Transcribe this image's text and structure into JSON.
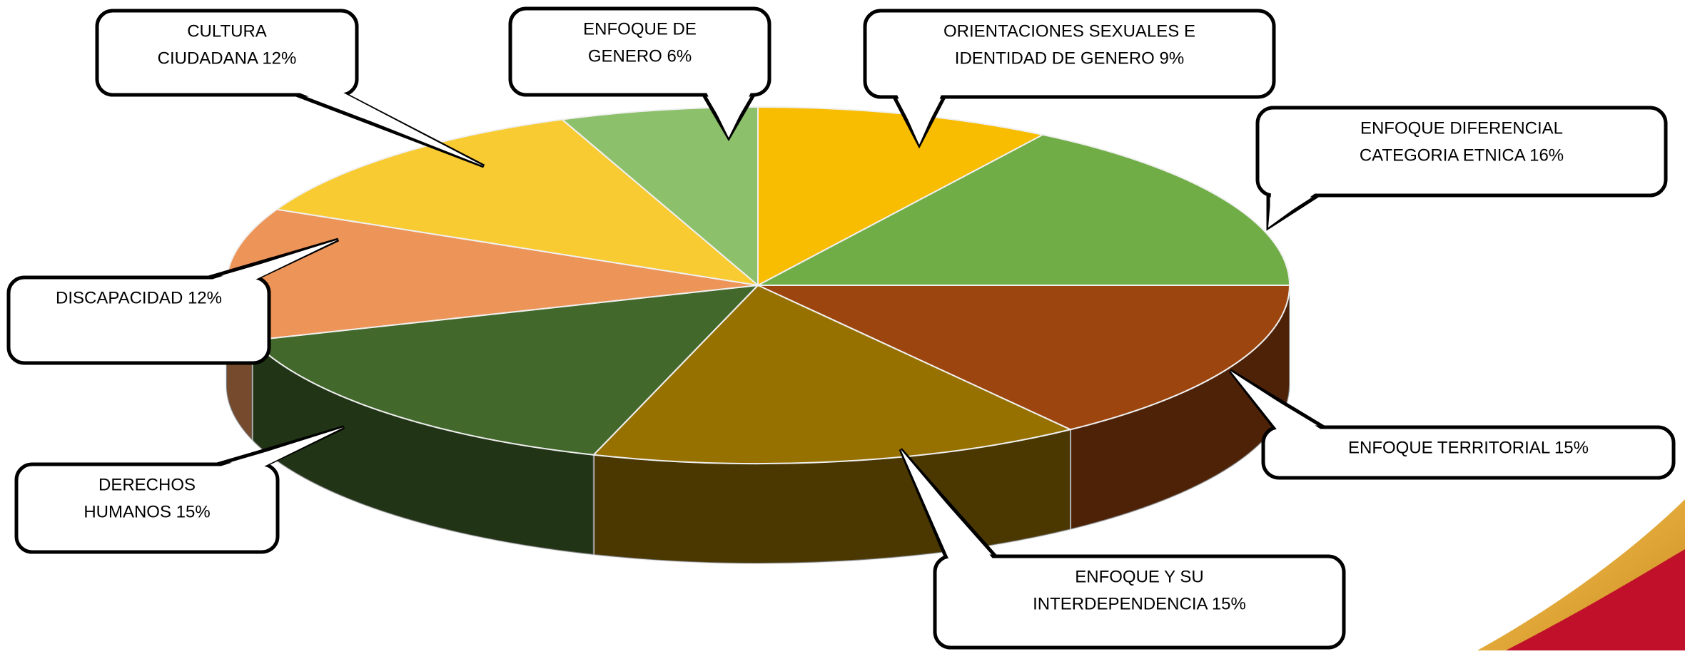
{
  "chart_data": {
    "type": "pie3d",
    "categories": [
      [
        "ORIENTACIONES SEXUALES E",
        "IDENTIDAD DE GENERO 9%"
      ],
      [
        "ENFOQUE DIFERENCIAL",
        "CATEGORIA ETNICA 16%"
      ],
      [
        "ENFOQUE TERRITORIAL   15%"
      ],
      [
        "ENFOQUE Y SU",
        "INTERDEPENDENCIA 15%"
      ],
      [
        "DERECHOS",
        "HUMANOS 15%"
      ],
      [
        "DISCAPACIDAD  12%"
      ],
      [
        "CULTURA",
        "CIUDADANA 12%"
      ],
      [
        "ENFOQUE DE",
        "GENERO 6%"
      ]
    ],
    "values": [
      9,
      16,
      15,
      15,
      15,
      12,
      12,
      6
    ],
    "colors": [
      "#f8bc00",
      "#70ad47",
      "#9c450e",
      "#977100",
      "#43682b",
      "#ed9458",
      "#f8cb33",
      "#8cc06a"
    ]
  }
}
